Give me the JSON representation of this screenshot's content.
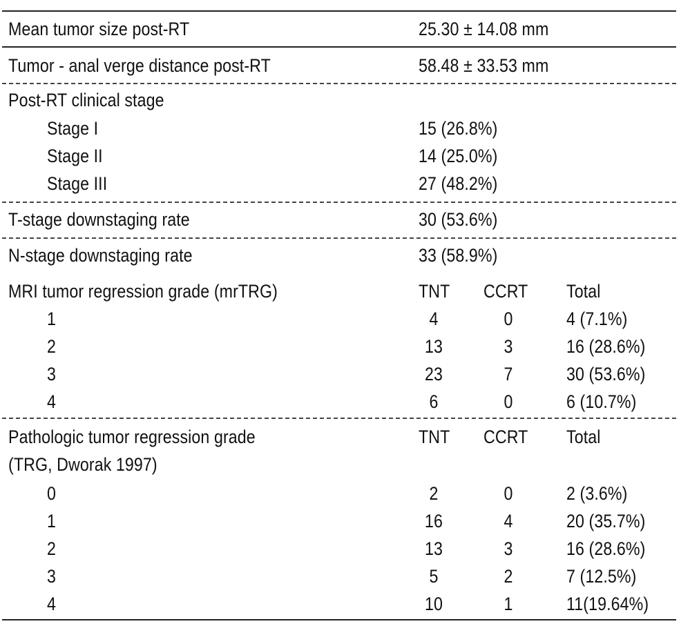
{
  "simple_rows": [
    {
      "label": "Mean tumor size post-RT",
      "value": "25.30 ± 14.08 mm"
    },
    {
      "label": "Tumor - anal verge distance post-RT",
      "value": "58.48 ± 33.53 mm"
    }
  ],
  "clinical_stage": {
    "label": "Post-RT clinical stage",
    "items": [
      {
        "label": "Stage I",
        "value": "15 (26.8%)"
      },
      {
        "label": "Stage II",
        "value": "14 (25.0%)"
      },
      {
        "label": "Stage III",
        "value": "27 (48.2%)"
      }
    ]
  },
  "downstaging": [
    {
      "label": "T-stage downstaging rate",
      "value": "30 (53.6%)"
    },
    {
      "label": "N-stage downstaging rate",
      "value": "33 (58.9%)"
    }
  ],
  "mrtrg": {
    "label": "MRI tumor regression grade (mrTRG)",
    "headers": [
      "TNT",
      "CCRT",
      "Total"
    ],
    "rows": [
      {
        "grade": "1",
        "tnt": "4",
        "ccrt": "0",
        "total": "4 (7.1%)"
      },
      {
        "grade": "2",
        "tnt": "13",
        "ccrt": "3",
        "total": "16 (28.6%)"
      },
      {
        "grade": "3",
        "tnt": "23",
        "ccrt": "7",
        "total": "30 (53.6%)"
      },
      {
        "grade": "4",
        "tnt": "6",
        "ccrt": "0",
        "total": "6 (10.7%)"
      }
    ]
  },
  "ptrg": {
    "label": "Pathologic tumor regression grade",
    "label2": "(TRG, Dworak 1997)",
    "headers": [
      "TNT",
      "CCRT",
      "Total"
    ],
    "rows": [
      {
        "grade": "0",
        "tnt": "2",
        "ccrt": "0",
        "total": "2 (3.6%)"
      },
      {
        "grade": "1",
        "tnt": "16",
        "ccrt": "4",
        "total": "20 (35.7%)"
      },
      {
        "grade": "2",
        "tnt": "13",
        "ccrt": "3",
        "total": "16 (28.6%)"
      },
      {
        "grade": "3",
        "tnt": "5",
        "ccrt": "2",
        "total": "7 (12.5%)"
      },
      {
        "grade": "4",
        "tnt": "10",
        "ccrt": "1",
        "total": "11(19.64%)"
      }
    ]
  }
}
